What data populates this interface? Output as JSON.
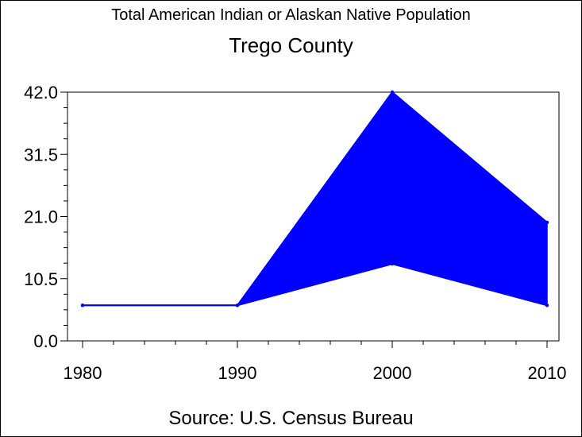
{
  "chart_data": {
    "type": "area",
    "title": "Total American Indian or Alaskan Native Population",
    "subtitle": "Trego County",
    "source": "Source: U.S. Census Bureau",
    "x": [
      1980,
      1990,
      2000,
      2010
    ],
    "x_tick_labels": [
      "1980",
      "1990",
      "2000",
      "2010"
    ],
    "y_tick_labels": [
      "0.0",
      "10.5",
      "21.0",
      "31.5",
      "42.0"
    ],
    "y_ticks": [
      0,
      10.5,
      21,
      31.5,
      42
    ],
    "ylim": [
      0,
      42
    ],
    "xlim": [
      1980,
      2010
    ],
    "band": {
      "upper": [
        6,
        6,
        42,
        20
      ],
      "lower": [
        6,
        6,
        13,
        6
      ]
    },
    "grid": false,
    "fill_color": "#0000ff",
    "line_color": "#0000ff"
  }
}
